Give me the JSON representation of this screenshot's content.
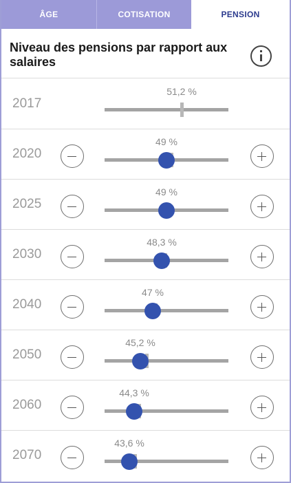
{
  "tabs": [
    {
      "label": "ÂGE",
      "active": false
    },
    {
      "label": "COTISATION",
      "active": false
    },
    {
      "label": "PENSION",
      "active": true
    }
  ],
  "header": {
    "title": "Niveau des pensions par rapport aux salaires",
    "info_icon": "info-icon"
  },
  "slider_range": {
    "min": 40,
    "max": 58
  },
  "reference_value": 51.2,
  "rows": [
    {
      "year": "2017",
      "value_label": "51,2 %",
      "value": 51.2,
      "adjustable": false
    },
    {
      "year": "2020",
      "value_label": "49 %",
      "value": 49.0,
      "adjustable": true
    },
    {
      "year": "2025",
      "value_label": "49 %",
      "value": 49.0,
      "adjustable": true
    },
    {
      "year": "2030",
      "value_label": "48,3 %",
      "value": 48.3,
      "adjustable": true
    },
    {
      "year": "2040",
      "value_label": "47 %",
      "value": 47.0,
      "adjustable": true
    },
    {
      "year": "2050",
      "value_label": "45,2 %",
      "value": 45.2,
      "adjustable": true
    },
    {
      "year": "2060",
      "value_label": "44,3 %",
      "value": 44.3,
      "adjustable": true
    },
    {
      "year": "2070",
      "value_label": "43,6 %",
      "value": 43.6,
      "adjustable": true
    }
  ],
  "reference_marks": [
    51.2,
    49.7,
    49.3,
    48.8,
    47.4,
    46.1,
    45.0,
    44.4
  ],
  "colors": {
    "tab_bg": "#9c9ad8",
    "tab_active_text": "#2c3b8e",
    "knob": "#3352ae",
    "track": "#a4a4a4"
  }
}
